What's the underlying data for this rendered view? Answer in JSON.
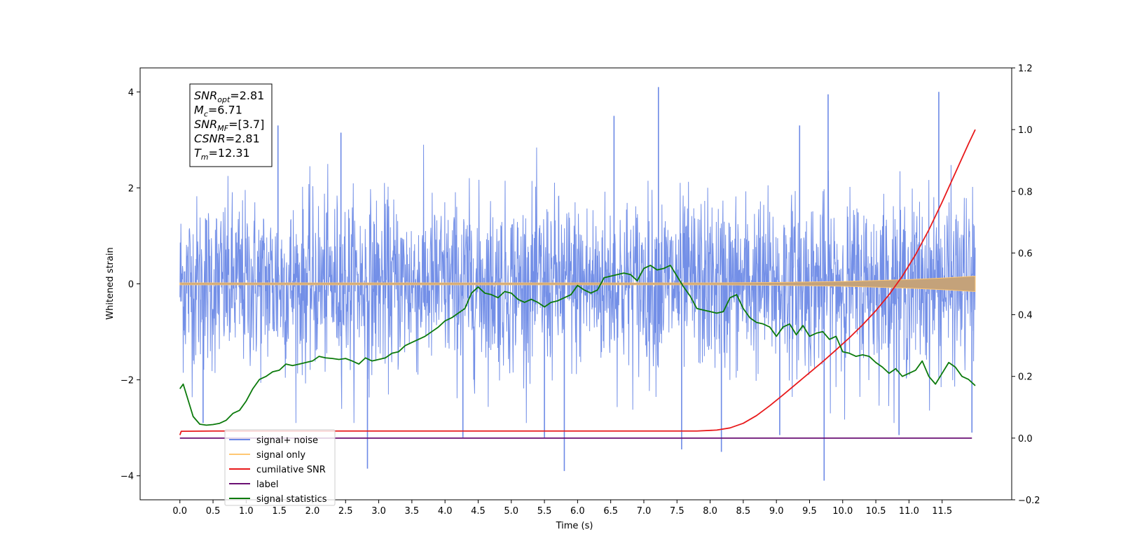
{
  "chart_data": {
    "type": "line",
    "xlabel": "Time (s)",
    "ylabel": "Whitened strain",
    "xlim": [
      -0.6,
      12.55
    ],
    "ylim": [
      -4.5,
      4.5
    ],
    "y2lim": [
      -0.2,
      1.2
    ],
    "x_ticks": [
      0.0,
      0.5,
      1.0,
      1.5,
      2.0,
      2.5,
      3.0,
      3.5,
      4.0,
      4.5,
      5.0,
      5.5,
      6.0,
      6.5,
      7.0,
      7.5,
      8.0,
      8.5,
      9.0,
      9.5,
      10.0,
      10.5,
      11.0,
      11.5
    ],
    "x_tick_labels": [
      "0.0",
      "0.5",
      "1.0",
      "1.5",
      "2.0",
      "2.5",
      "3.0",
      "3.5",
      "4.0",
      "4.5",
      "5.0",
      "5.5",
      "6.0",
      "6.5",
      "7.0",
      "7.5",
      "8.0",
      "8.5",
      "9.0",
      "9.5",
      "10.0",
      "10.5",
      "11.0",
      "11.5"
    ],
    "y_ticks": [
      -4,
      -2,
      0,
      2,
      4
    ],
    "y_tick_labels": [
      "−4",
      "−2",
      "0",
      "2",
      "4"
    ],
    "y2_ticks": [
      -0.2,
      0.0,
      0.2,
      0.4,
      0.6,
      0.8,
      1.0,
      1.2
    ],
    "y2_tick_labels": [
      "−0.2",
      "0.0",
      "0.2",
      "0.4",
      "0.6",
      "0.8",
      "1.0",
      "1.2"
    ],
    "grid": false,
    "legend_position": "lower-left",
    "noise": {
      "t_start": 0.0,
      "t_end": 12.0,
      "spike_peaks": [
        {
          "t": 7.22,
          "y": 4.1
        },
        {
          "t": 9.78,
          "y": 3.95
        },
        {
          "t": 11.45,
          "y": 4.0
        },
        {
          "t": 1.48,
          "y": 3.3
        },
        {
          "t": 6.55,
          "y": 3.5
        },
        {
          "t": 2.43,
          "y": 3.15
        },
        {
          "t": 9.35,
          "y": 3.3
        },
        {
          "t": 9.72,
          "y": -4.1
        },
        {
          "t": 5.8,
          "y": -3.9
        },
        {
          "t": 2.83,
          "y": -3.85
        },
        {
          "t": 8.17,
          "y": -3.5
        },
        {
          "t": 7.57,
          "y": -3.45
        },
        {
          "t": 9.05,
          "y": -3.15
        },
        {
          "t": 10.85,
          "y": -3.15
        },
        {
          "t": 0.35,
          "y": -2.9
        },
        {
          "t": 11.95,
          "y": -3.1
        },
        {
          "t": 5.5,
          "y": -3.2
        },
        {
          "t": 4.27,
          "y": -3.2
        }
      ]
    },
    "series": [
      {
        "name": "signal+ noise",
        "axis": "left",
        "color": "#6c89e6"
      },
      {
        "name": "signal only",
        "axis": "left",
        "color": "#ffc773",
        "envelope_x": [
          0,
          8,
          9,
          10,
          10.5,
          11,
          11.5,
          12.0
        ],
        "envelope_y": [
          0.02,
          0.02,
          0.03,
          0.05,
          0.07,
          0.09,
          0.12,
          0.16
        ]
      },
      {
        "name": "cumilative SNR",
        "axis": "right",
        "color": "#e8191b",
        "x": [
          0.0,
          0.02,
          0.5,
          1.0,
          2.0,
          3.0,
          4.0,
          5.0,
          6.0,
          7.0,
          7.8,
          8.1,
          8.3,
          8.5,
          8.7,
          8.9,
          9.1,
          9.3,
          9.5,
          9.7,
          9.9,
          10.1,
          10.3,
          10.5,
          10.7,
          10.9,
          11.1,
          11.3,
          11.5,
          11.7,
          11.9,
          12.0
        ],
        "y": [
          0.01,
          0.022,
          0.023,
          0.023,
          0.023,
          0.023,
          0.023,
          0.023,
          0.023,
          0.023,
          0.023,
          0.026,
          0.033,
          0.048,
          0.073,
          0.105,
          0.14,
          0.176,
          0.212,
          0.248,
          0.286,
          0.325,
          0.367,
          0.413,
          0.465,
          0.525,
          0.595,
          0.675,
          0.765,
          0.86,
          0.955,
          1.0
        ]
      },
      {
        "name": "label",
        "axis": "right",
        "color": "#6a0f73",
        "x": [
          0.0,
          11.95
        ],
        "y": [
          0.0,
          0.0
        ]
      },
      {
        "name": "signal statistics",
        "axis": "right",
        "color": "#0b7a0b",
        "x": [
          0.0,
          0.05,
          0.1,
          0.2,
          0.3,
          0.4,
          0.5,
          0.6,
          0.7,
          0.8,
          0.9,
          1.0,
          1.1,
          1.2,
          1.3,
          1.4,
          1.5,
          1.6,
          1.7,
          1.8,
          1.9,
          2.0,
          2.1,
          2.2,
          2.3,
          2.4,
          2.5,
          2.6,
          2.7,
          2.8,
          2.9,
          3.0,
          3.1,
          3.2,
          3.3,
          3.4,
          3.5,
          3.6,
          3.7,
          3.8,
          3.9,
          4.0,
          4.1,
          4.2,
          4.3,
          4.4,
          4.5,
          4.6,
          4.7,
          4.8,
          4.9,
          5.0,
          5.1,
          5.2,
          5.3,
          5.4,
          5.5,
          5.6,
          5.7,
          5.8,
          5.9,
          6.0,
          6.1,
          6.2,
          6.3,
          6.4,
          6.5,
          6.6,
          6.7,
          6.8,
          6.9,
          7.0,
          7.1,
          7.2,
          7.3,
          7.4,
          7.5,
          7.6,
          7.7,
          7.8,
          7.9,
          8.0,
          8.1,
          8.2,
          8.3,
          8.4,
          8.5,
          8.6,
          8.7,
          8.8,
          8.9,
          9.0,
          9.1,
          9.2,
          9.3,
          9.4,
          9.5,
          9.6,
          9.7,
          9.8,
          9.9,
          10.0,
          10.1,
          10.2,
          10.3,
          10.4,
          10.5,
          10.6,
          10.7,
          10.8,
          10.9,
          11.0,
          11.1,
          11.2,
          11.3,
          11.4,
          11.5,
          11.6,
          11.7,
          11.8,
          11.9,
          12.0
        ],
        "y": [
          0.16,
          0.175,
          0.14,
          0.07,
          0.045,
          0.042,
          0.044,
          0.048,
          0.058,
          0.08,
          0.09,
          0.12,
          0.16,
          0.19,
          0.2,
          0.215,
          0.22,
          0.24,
          0.235,
          0.24,
          0.245,
          0.25,
          0.265,
          0.26,
          0.258,
          0.255,
          0.258,
          0.25,
          0.24,
          0.26,
          0.25,
          0.255,
          0.26,
          0.275,
          0.28,
          0.3,
          0.31,
          0.32,
          0.33,
          0.345,
          0.36,
          0.38,
          0.39,
          0.405,
          0.42,
          0.47,
          0.49,
          0.47,
          0.465,
          0.455,
          0.475,
          0.47,
          0.45,
          0.44,
          0.45,
          0.44,
          0.425,
          0.44,
          0.445,
          0.455,
          0.465,
          0.495,
          0.48,
          0.47,
          0.48,
          0.52,
          0.525,
          0.53,
          0.535,
          0.53,
          0.51,
          0.55,
          0.56,
          0.545,
          0.55,
          0.56,
          0.525,
          0.49,
          0.46,
          0.42,
          0.415,
          0.41,
          0.405,
          0.41,
          0.455,
          0.465,
          0.42,
          0.39,
          0.375,
          0.37,
          0.36,
          0.33,
          0.36,
          0.37,
          0.335,
          0.365,
          0.33,
          0.34,
          0.345,
          0.32,
          0.33,
          0.28,
          0.275,
          0.265,
          0.27,
          0.265,
          0.245,
          0.23,
          0.21,
          0.225,
          0.2,
          0.21,
          0.22,
          0.25,
          0.2,
          0.175,
          0.21,
          0.245,
          0.23,
          0.2,
          0.19,
          0.17
        ]
      }
    ],
    "annotation": {
      "lines": [
        {
          "var": "SNR",
          "sub": "opt",
          "value": "=2.81"
        },
        {
          "var": "M",
          "sub": "c",
          "value": "=6.71"
        },
        {
          "var": "SNR",
          "sub": "MF",
          "value": "=[3.7]"
        },
        {
          "var": "CSNR",
          "sub": "",
          "value": "=2.81"
        },
        {
          "var": "T",
          "sub": "m",
          "value": "=12.31"
        }
      ]
    }
  }
}
